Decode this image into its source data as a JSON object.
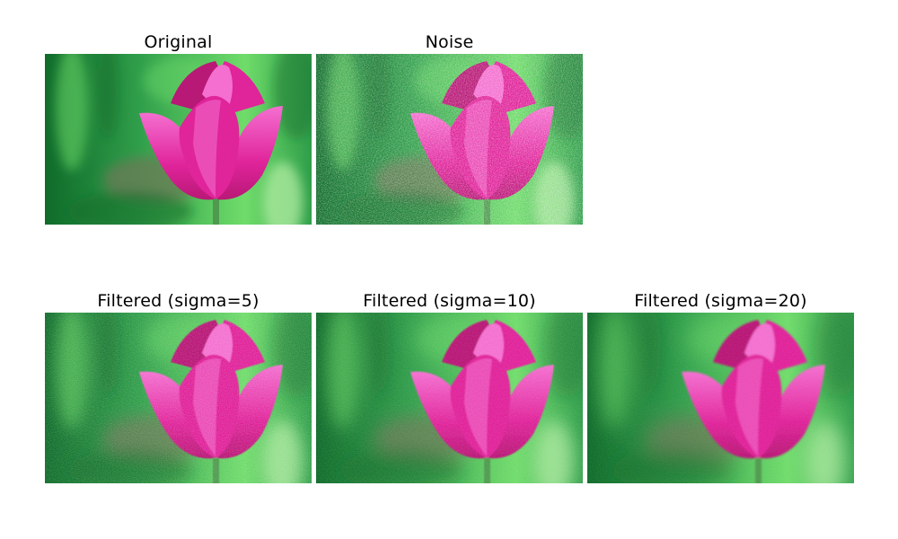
{
  "figure": {
    "panels": [
      {
        "title": "Original",
        "image": "tulip-original",
        "noise": 0,
        "blur": 0
      },
      {
        "title": "Noise",
        "image": "tulip-noisy",
        "noise": 1,
        "blur": 0
      },
      {
        "title": "Filtered (sigma=5)",
        "image": "tulip-filtered-sigma-5",
        "noise": 0.45,
        "blur": 0.6
      },
      {
        "title": "Filtered (sigma=10)",
        "image": "tulip-filtered-sigma-10",
        "noise": 0.3,
        "blur": 0.9
      },
      {
        "title": "Filtered (sigma=20)",
        "image": "tulip-filtered-sigma-20",
        "noise": 0.2,
        "blur": 1.3
      }
    ]
  },
  "colors": {
    "background": "#ffffff",
    "title_text": "#000000",
    "petal_magenta": "#e0249a",
    "petal_light": "#f46fd0",
    "petal_dark": "#b81876",
    "foliage_green": "#2f9e4a",
    "foliage_light": "#6fdc6a",
    "foliage_dark": "#0f6b2a",
    "stem_green": "#4f9a4f"
  }
}
